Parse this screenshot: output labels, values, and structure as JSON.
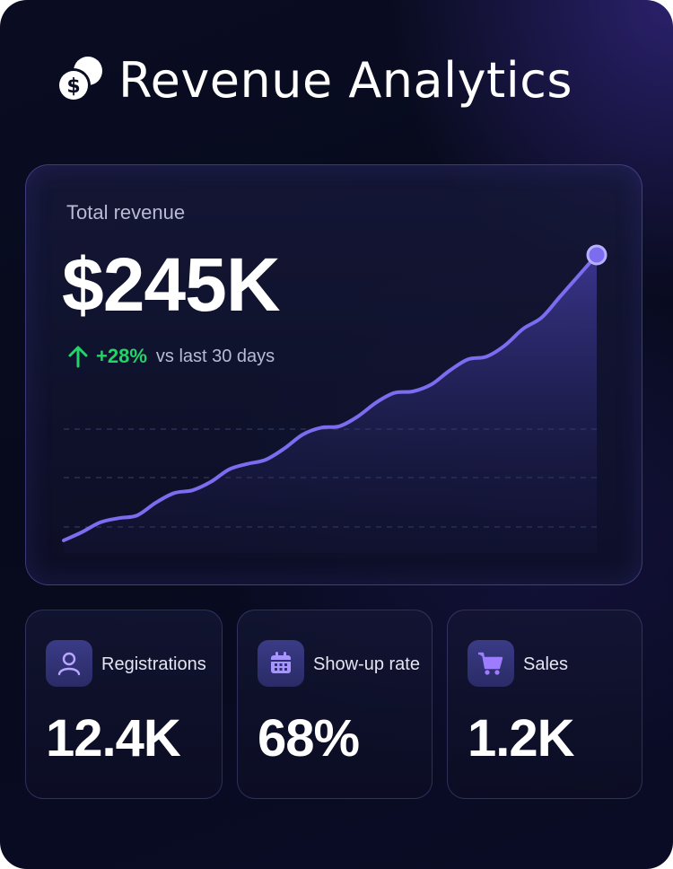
{
  "header": {
    "title": "Revenue Analytics",
    "icon": "dollar-coins-icon"
  },
  "total_revenue": {
    "label": "Total revenue",
    "value": "$245K",
    "delta": "+28%",
    "delta_caption": "vs last 30 days",
    "delta_color": "#22d46a",
    "chart_data": {
      "type": "area",
      "x": [
        0,
        1,
        2,
        3,
        4,
        5,
        6,
        7,
        8,
        9,
        10,
        11,
        12,
        13,
        14,
        15,
        16,
        17,
        18,
        19,
        20,
        21,
        22,
        23,
        24,
        25,
        26,
        27,
        28,
        29
      ],
      "values": [
        0,
        6,
        13,
        16,
        18,
        27,
        34,
        36,
        42,
        51,
        55,
        58,
        66,
        76,
        81,
        82,
        89,
        99,
        106,
        107,
        112,
        122,
        130,
        132,
        140,
        152,
        160,
        175,
        190,
        205
      ],
      "line_color": "#7b6cf0",
      "grid": "dashed horizontal",
      "axes_visible": false
    }
  },
  "stats": [
    {
      "label": "Registrations",
      "value": "12.4K",
      "icon": "user-icon"
    },
    {
      "label": "Show-up rate",
      "value": "68%",
      "icon": "calendar-icon"
    },
    {
      "label": "Sales",
      "value": "1.2K",
      "icon": "shopping-cart-icon"
    }
  ]
}
